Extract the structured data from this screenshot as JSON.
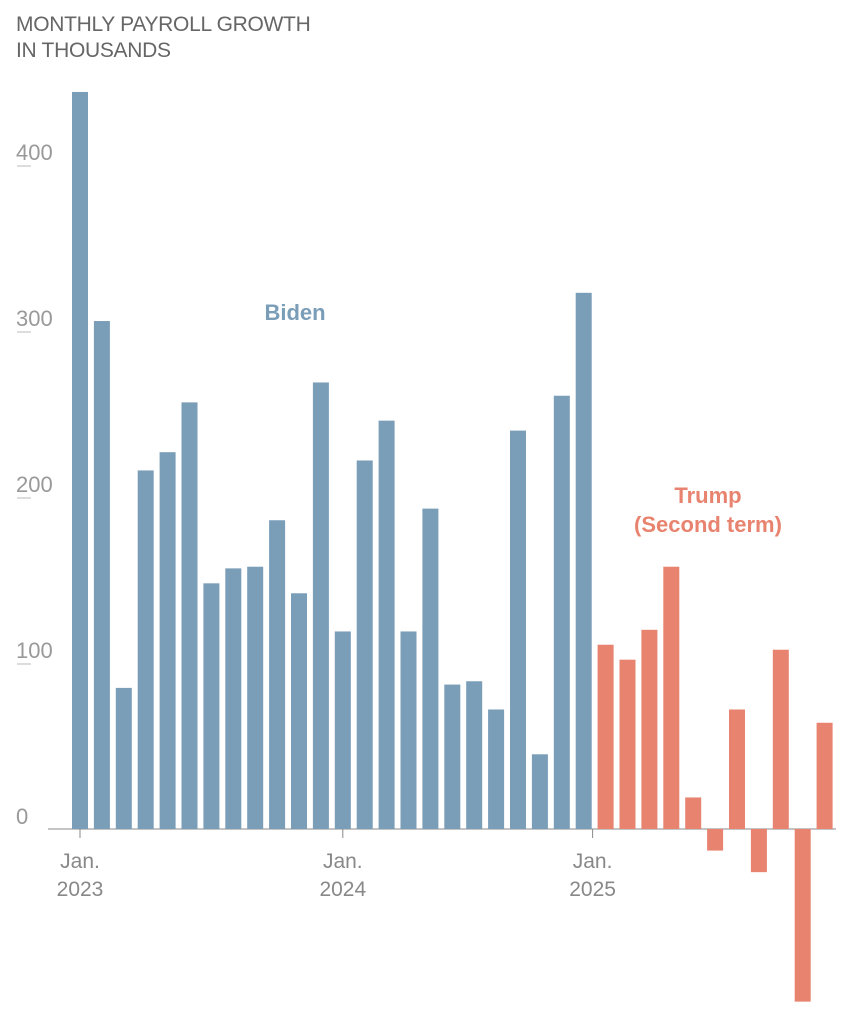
{
  "chart_data": {
    "type": "bar",
    "title": "MONTHLY PAYROLL GROWTH",
    "subtitle": "IN THOUSANDS",
    "xlabel": "",
    "ylabel": "",
    "ylim": [
      -110,
      450
    ],
    "yticks": [
      0,
      100,
      200,
      300,
      400
    ],
    "grid": false,
    "xtick_labels": [
      {
        "month": "Jan.",
        "year": "2023",
        "index": 0
      },
      {
        "month": "Jan.",
        "year": "2024",
        "index": 12
      },
      {
        "month": "Jan.",
        "year": "2025",
        "index": 24
      }
    ],
    "series": [
      {
        "name": "Biden",
        "color": "#7a9db8",
        "start": "2023-01",
        "values": [
          444,
          306,
          85,
          216,
          227,
          257,
          148,
          157,
          158,
          186,
          142,
          269,
          119,
          222,
          246,
          119,
          193,
          87,
          89,
          72,
          240,
          45,
          261,
          323
        ]
      },
      {
        "name": "Trump (Second term)",
        "name_lines": [
          "Trump",
          "(Second term)"
        ],
        "color": "#e8836f",
        "start": "2025-01",
        "values": [
          111,
          102,
          120,
          158,
          19,
          -13,
          72,
          -26,
          108,
          -104,
          64
        ]
      }
    ]
  }
}
